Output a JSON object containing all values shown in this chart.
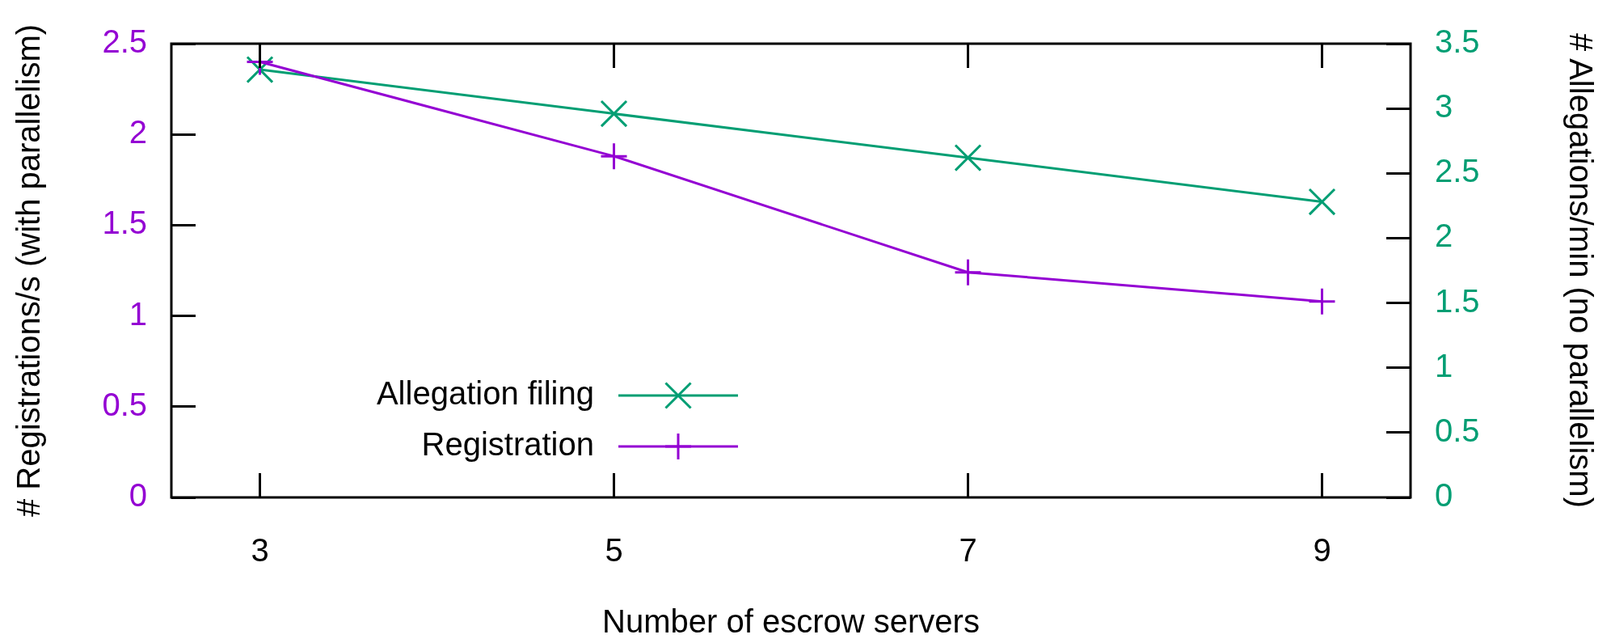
{
  "chart_data": {
    "type": "line",
    "xlabel": "Number of escrow servers",
    "ylabel": "# Registrations/s (with parallelism)",
    "y2label": "# Allegations/min (no parallelism)",
    "x": [
      3,
      5,
      7,
      9
    ],
    "series": [
      {
        "name": "Allegation filing",
        "color": "#009e73",
        "axis": "y2",
        "marker": "cross",
        "values": [
          3.3,
          2.96,
          2.62,
          2.28
        ]
      },
      {
        "name": "Registration",
        "color": "#9400d3",
        "marker": "cross",
        "values": [
          2.4,
          1.88,
          1.24,
          1.08
        ]
      }
    ],
    "xlim": [
      2.5,
      9.5
    ],
    "xticks": [
      3,
      5,
      7,
      9
    ],
    "ylim": [
      0,
      2.5
    ],
    "yticks": [
      0,
      0.5,
      1,
      1.5,
      2,
      2.5
    ],
    "y2lim": [
      0,
      3.5
    ],
    "y2ticks": [
      0,
      0.5,
      1,
      1.5,
      2,
      2.5,
      3,
      3.5
    ],
    "grid": false,
    "legend": "bottom left",
    "line_style": "solid"
  }
}
